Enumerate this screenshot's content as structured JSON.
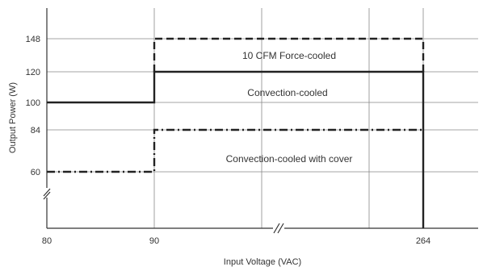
{
  "chart_data": {
    "type": "line",
    "title": "",
    "xlabel": "Input Voltage (VAC)",
    "ylabel": "Output Power (W)",
    "x_ticks": [
      {
        "value": 80,
        "label": "80"
      },
      {
        "value": 90,
        "label": "90"
      },
      {
        "value": 264,
        "label": "264"
      }
    ],
    "y_ticks": [
      {
        "value": 60,
        "label": "60"
      },
      {
        "value": 84,
        "label": "84"
      },
      {
        "value": 100,
        "label": "100"
      },
      {
        "value": 120,
        "label": "120"
      },
      {
        "value": 148,
        "label": "148"
      }
    ],
    "grid": true,
    "axis_breaks": {
      "x": true,
      "y": true
    },
    "series": [
      {
        "style": "dashed",
        "points": [
          [
            90,
            120
          ],
          [
            90,
            148
          ],
          [
            264,
            148
          ],
          [
            264,
            120
          ]
        ]
      },
      {
        "style": "solid",
        "points": [
          [
            80,
            100
          ],
          [
            90,
            100
          ],
          [
            90,
            120
          ],
          [
            264,
            120
          ],
          [
            264,
            0
          ]
        ]
      },
      {
        "style": "dash-dot",
        "points": [
          [
            80,
            60
          ],
          [
            90,
            60
          ],
          [
            90,
            84
          ],
          [
            264,
            84
          ]
        ]
      }
    ],
    "annotations": [
      {
        "text": "10 CFM Force-cooled",
        "series_index": 0
      },
      {
        "text": "Convection-cooled",
        "series_index": 1
      },
      {
        "text": "Convection-cooled with cover",
        "series_index": 2
      }
    ]
  }
}
